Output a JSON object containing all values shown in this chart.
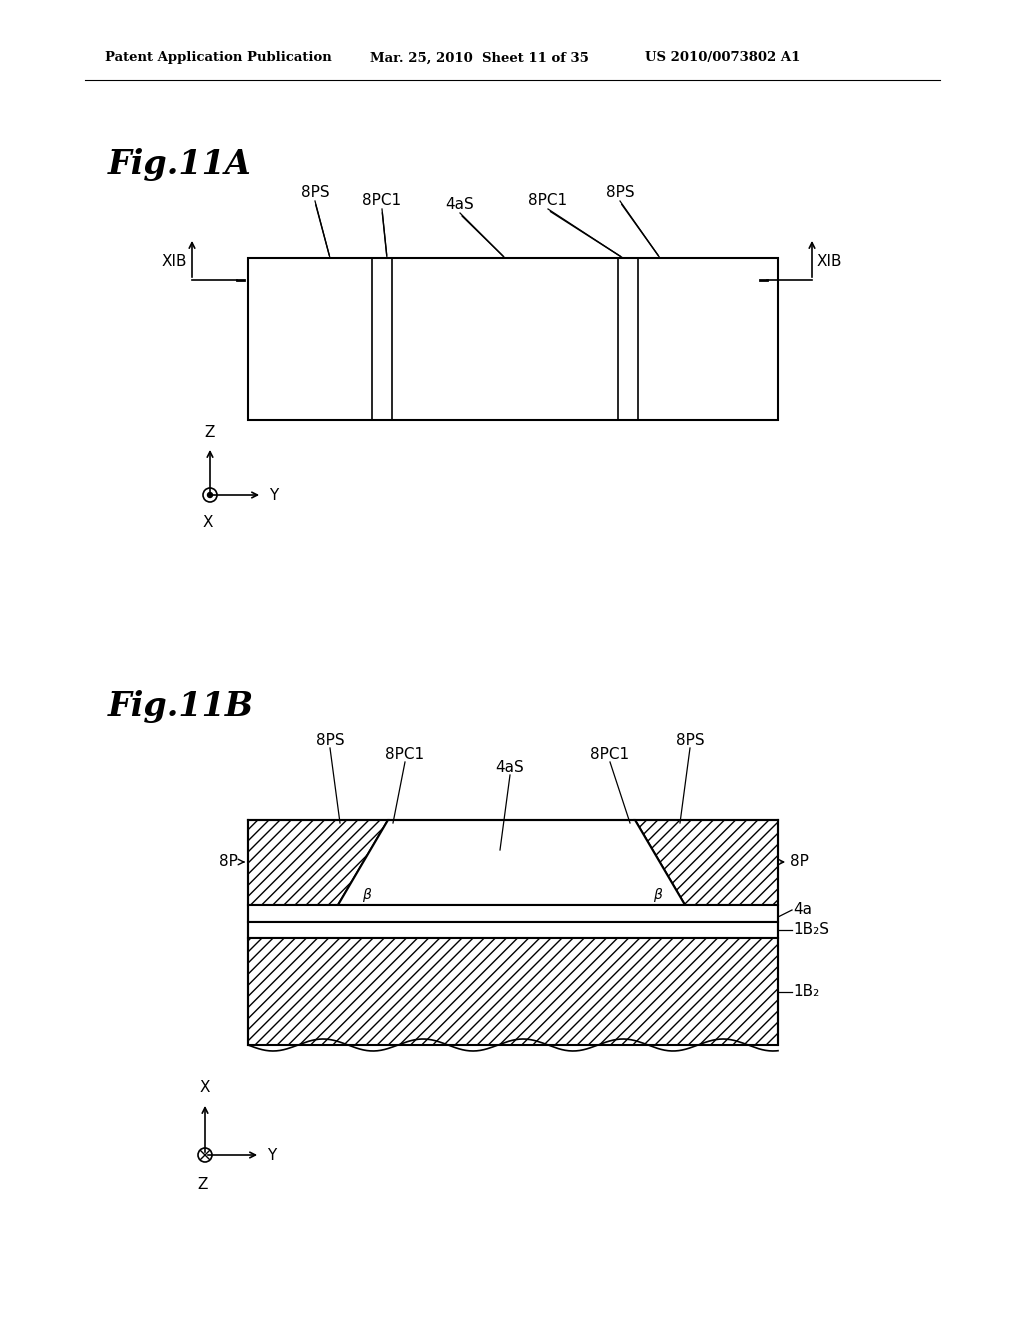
{
  "bg_color": "#ffffff",
  "header_left": "Patent Application Publication",
  "header_mid": "Mar. 25, 2010  Sheet 11 of 35",
  "header_right": "US 2010/0073802 A1",
  "fig11A_label": "Fig.11A",
  "fig11B_label": "Fig.11B",
  "fig11B_label_4aS": "4aS",
  "fig11B_label_8P_left": "8P",
  "fig11B_label_8P_right": "8P",
  "fig11B_label_4a": "4a",
  "fig11B_label_1B2S": "1B₂S",
  "fig11B_label_1B2": "1B₂",
  "fig11B_label_beta": "β"
}
